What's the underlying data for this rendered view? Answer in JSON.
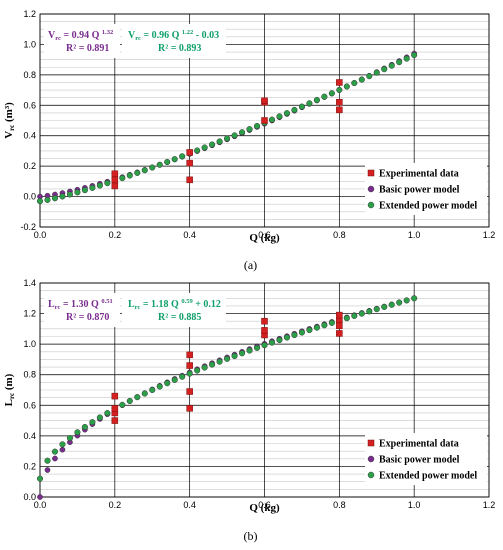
{
  "colors": {
    "experimental": "#d42020",
    "basic": "#7a2d8f",
    "extended": "#2ca049",
    "grid_major": "#000000",
    "grid_minor": "#c8c8c8"
  },
  "legend_labels": [
    "Experimental data",
    "Basic power model",
    "Extended power model"
  ],
  "chart_data": [
    {
      "type": "scatter",
      "caption": "(a)",
      "xlabel": "Q (kg)",
      "ylabel": "V_rc (m³)",
      "ylabel_main": "V",
      "ylabel_sub": "rc",
      "ylabel_unit": " (m³)",
      "xlim": [
        0,
        1.2
      ],
      "ylim": [
        -0.2,
        1.2
      ],
      "x_ticks": [
        "0.0",
        "0.2",
        "0.4",
        "0.6",
        "0.8",
        "1.0",
        "1.2"
      ],
      "y_ticks": [
        "-0.2",
        "0.0",
        "0.2",
        "0.4",
        "0.6",
        "0.8",
        "1.0",
        "1.2"
      ],
      "grid": true,
      "legend_position": "bottom-right",
      "equations": {
        "basic": {
          "lhs": "V",
          "sub": "rc",
          "rhs": " = 0.94 Q ",
          "exp": "1.32",
          "tail": "",
          "r2": "R² = 0.891"
        },
        "extended": {
          "lhs": "V",
          "sub": "rc",
          "rhs": " = 0.96 Q ",
          "exp": "1.22",
          "tail": " - 0.03",
          "r2": "R² = 0.893"
        }
      },
      "experimental": {
        "x": [
          0.2,
          0.2,
          0.2,
          0.4,
          0.4,
          0.4,
          0.6,
          0.6,
          0.6,
          0.8,
          0.8,
          0.8
        ],
        "y": [
          0.07,
          0.11,
          0.15,
          0.11,
          0.22,
          0.29,
          0.5,
          0.62,
          0.63,
          0.57,
          0.62,
          0.75
        ]
      },
      "models": {
        "basic": {
          "a": 0.94,
          "b": 1.32,
          "c": 0.0,
          "x_start": 0.0,
          "x_end": 1.0,
          "step": 0.02
        },
        "extended": {
          "a": 0.96,
          "b": 1.22,
          "c": -0.03,
          "x_start": 0.0,
          "x_end": 1.0,
          "step": 0.02
        }
      }
    },
    {
      "type": "scatter",
      "caption": "(b)",
      "xlabel": "Q (kg)",
      "ylabel": "L_rc (m)",
      "ylabel_main": "L",
      "ylabel_sub": "rc",
      "ylabel_unit": " (m)",
      "xlim": [
        0,
        1.2
      ],
      "ylim": [
        0,
        1.4
      ],
      "x_ticks": [
        "0.0",
        "0.2",
        "0.4",
        "0.6",
        "0.8",
        "1.0",
        "1.2"
      ],
      "y_ticks": [
        "0.0",
        "0.2",
        "0.4",
        "0.6",
        "0.8",
        "1.0",
        "1.2",
        "1.4"
      ],
      "grid": true,
      "legend_position": "bottom-right",
      "equations": {
        "basic": {
          "lhs": "L",
          "sub": "rc",
          "rhs": " = 1.30 Q ",
          "exp": "0.51",
          "tail": "",
          "r2": "R² = 0.870"
        },
        "extended": {
          "lhs": "L",
          "sub": "rc",
          "rhs": " = 1.18 Q ",
          "exp": "0.59",
          "tail": " + 0.12",
          "r2": "R² = 0.885"
        }
      },
      "experimental": {
        "x": [
          0.2,
          0.2,
          0.2,
          0.2,
          0.4,
          0.4,
          0.4,
          0.4,
          0.6,
          0.6,
          0.6,
          0.8,
          0.8,
          0.8,
          0.8
        ],
        "y": [
          0.5,
          0.55,
          0.58,
          0.66,
          0.58,
          0.69,
          0.86,
          0.93,
          1.06,
          1.09,
          1.15,
          1.07,
          1.12,
          1.16,
          1.19
        ]
      },
      "models": {
        "basic": {
          "a": 1.3,
          "b": 0.51,
          "c": 0.0,
          "x_start": 0.0,
          "x_end": 1.0,
          "step": 0.02
        },
        "extended": {
          "a": 1.18,
          "b": 0.59,
          "c": 0.12,
          "x_start": 0.0,
          "x_end": 1.0,
          "step": 0.02
        }
      }
    }
  ]
}
